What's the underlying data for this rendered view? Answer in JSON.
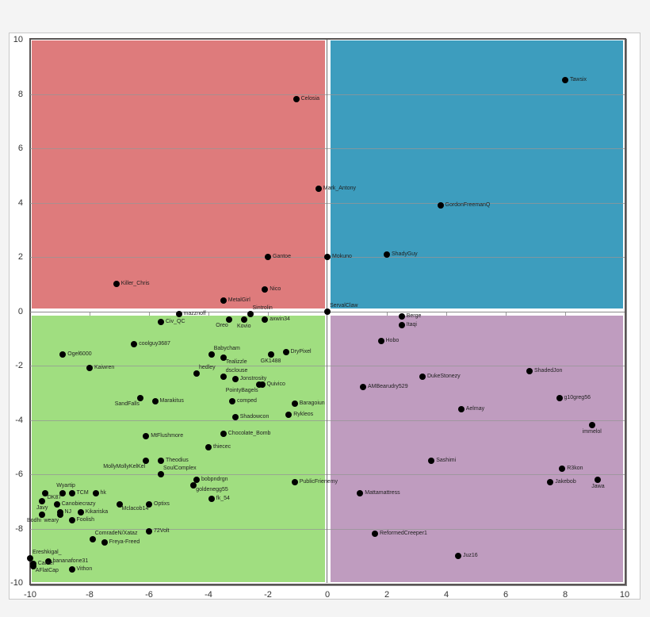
{
  "chart_data": {
    "type": "scatter",
    "title": "",
    "xlabel": "",
    "ylabel": "",
    "xlim": [
      -10,
      10
    ],
    "ylim": [
      -10,
      10
    ],
    "xticks": [
      -10,
      -8,
      -6,
      -4,
      -2,
      0,
      2,
      4,
      6,
      8,
      10
    ],
    "yticks": [
      10,
      8,
      6,
      4,
      2,
      0,
      -2,
      -4,
      -6,
      -8,
      -10
    ],
    "grid": "horizontal",
    "legend": "none",
    "quadrant_colors": {
      "top_left": "#de7b7c",
      "top_right": "#3d9dbe",
      "bottom_left": "#a0de80",
      "bottom_right": "#bf9cbf"
    },
    "points": [
      {
        "label": "Celosia",
        "x": -1.05,
        "y": 7.8,
        "pos": "r"
      },
      {
        "label": "Tawsix",
        "x": 8.0,
        "y": 8.5,
        "pos": "r"
      },
      {
        "label": "Mark_Antony",
        "x": -0.3,
        "y": 4.5,
        "pos": "r"
      },
      {
        "label": "GordonFreemanQ",
        "x": 3.8,
        "y": 3.9,
        "pos": "r"
      },
      {
        "label": "Gantoe",
        "x": -2.0,
        "y": 2.0,
        "pos": "r"
      },
      {
        "label": "Mokuno",
        "x": 0.0,
        "y": 2.0,
        "pos": "r"
      },
      {
        "label": "ShadyGuy",
        "x": 2.0,
        "y": 2.1,
        "pos": "r"
      },
      {
        "label": "Killer_Chris",
        "x": -7.1,
        "y": 1.0,
        "pos": "r"
      },
      {
        "label": "Nico",
        "x": -2.1,
        "y": 0.8,
        "pos": "r"
      },
      {
        "label": "MetalGirl",
        "x": -3.5,
        "y": 0.4,
        "pos": "r"
      },
      {
        "label": "ServalClaw",
        "x": 0.0,
        "y": 0.0,
        "pos": "tr"
      },
      {
        "label": "Sintrolin",
        "x": -2.6,
        "y": -0.1,
        "pos": "tr"
      },
      {
        "label": "mazznoff",
        "x": -5.0,
        "y": -0.1,
        "pos": "r"
      },
      {
        "label": "Civ_QC",
        "x": -5.6,
        "y": -0.4,
        "pos": "r"
      },
      {
        "label": "Oreo",
        "x": -3.3,
        "y": -0.3,
        "pos": "bl"
      },
      {
        "label": "Kovio",
        "x": -2.8,
        "y": -0.3,
        "pos": "b"
      },
      {
        "label": "axwin34",
        "x": -2.1,
        "y": -0.3,
        "pos": "r"
      },
      {
        "label": "Berge",
        "x": 2.5,
        "y": -0.2,
        "pos": "r"
      },
      {
        "label": "Itaqi",
        "x": 2.5,
        "y": -0.5,
        "pos": "r"
      },
      {
        "label": "Hobo",
        "x": 1.8,
        "y": -1.1,
        "pos": "r"
      },
      {
        "label": "coolguy3687",
        "x": -6.5,
        "y": -1.2,
        "pos": "r"
      },
      {
        "label": "Ogel6000",
        "x": -8.9,
        "y": -1.6,
        "pos": "r"
      },
      {
        "label": "Babycham",
        "x": -3.9,
        "y": -1.6,
        "pos": "tr"
      },
      {
        "label": "Tealizzle",
        "x": -3.5,
        "y": -1.7,
        "pos": "br"
      },
      {
        "label": "GK1488",
        "x": -1.9,
        "y": -1.6,
        "pos": "b"
      },
      {
        "label": "DryPixel",
        "x": -1.4,
        "y": -1.5,
        "pos": "r"
      },
      {
        "label": "Kaiwren",
        "x": -8.0,
        "y": -2.1,
        "pos": "r"
      },
      {
        "label": "hedley",
        "x": -4.4,
        "y": -2.3,
        "pos": "tr"
      },
      {
        "label": "dsclouse",
        "x": -3.5,
        "y": -2.4,
        "pos": "tr"
      },
      {
        "label": "Jonstrosity",
        "x": -3.1,
        "y": -2.5,
        "pos": "r"
      },
      {
        "label": "PointyBagels",
        "x": -2.3,
        "y": -2.7,
        "pos": "bl"
      },
      {
        "label": "Quivico",
        "x": -2.2,
        "y": -2.7,
        "pos": "r"
      },
      {
        "label": "ShadedJon",
        "x": 6.8,
        "y": -2.2,
        "pos": "r"
      },
      {
        "label": "DukeStonezy",
        "x": 3.2,
        "y": -2.4,
        "pos": "r"
      },
      {
        "label": "AMBearudry529",
        "x": 1.2,
        "y": -2.8,
        "pos": "r"
      },
      {
        "label": "g10greg56",
        "x": 7.8,
        "y": -3.2,
        "pos": "r"
      },
      {
        "label": "Aelmay",
        "x": 4.5,
        "y": -3.6,
        "pos": "r"
      },
      {
        "label": "SandFalls",
        "x": -6.3,
        "y": -3.2,
        "pos": "bl"
      },
      {
        "label": "Marakitus",
        "x": -5.8,
        "y": -3.3,
        "pos": "r"
      },
      {
        "label": "comped",
        "x": -3.2,
        "y": -3.3,
        "pos": "r"
      },
      {
        "label": "Baragoiun",
        "x": -1.1,
        "y": -3.4,
        "pos": "r"
      },
      {
        "label": "Rykleos",
        "x": -1.3,
        "y": -3.8,
        "pos": "r"
      },
      {
        "label": "Shadowcon",
        "x": -3.1,
        "y": -3.9,
        "pos": "r"
      },
      {
        "label": "immelol",
        "x": 8.9,
        "y": -4.2,
        "pos": "b"
      },
      {
        "label": "Chocolate_Bomb",
        "x": -3.5,
        "y": -4.5,
        "pos": "r"
      },
      {
        "label": "MtFlushmore",
        "x": -6.1,
        "y": -4.6,
        "pos": "r"
      },
      {
        "label": "thiecec",
        "x": -4.0,
        "y": -5.0,
        "pos": "r"
      },
      {
        "label": "Sashimi",
        "x": 3.5,
        "y": -5.5,
        "pos": "r"
      },
      {
        "label": "MollyMollyKelKel",
        "x": -6.1,
        "y": -5.5,
        "pos": "bl"
      },
      {
        "label": "Theodius",
        "x": -5.6,
        "y": -5.5,
        "pos": "r"
      },
      {
        "label": "R3kon",
        "x": 7.9,
        "y": -5.8,
        "pos": "r"
      },
      {
        "label": "SoulComplex",
        "x": -5.6,
        "y": -6.0,
        "pos": "tr"
      },
      {
        "label": "bobpndrgn",
        "x": -4.4,
        "y": -6.2,
        "pos": "r"
      },
      {
        "label": "goldenegg55",
        "x": -4.5,
        "y": -6.4,
        "pos": "br"
      },
      {
        "label": "PublicFrienemy",
        "x": -1.1,
        "y": -6.3,
        "pos": "r"
      },
      {
        "label": "Jakebob",
        "x": 7.5,
        "y": -6.3,
        "pos": "r"
      },
      {
        "label": "Jawa",
        "x": 9.1,
        "y": -6.2,
        "pos": "b"
      },
      {
        "label": "Mattamattress",
        "x": 1.1,
        "y": -6.7,
        "pos": "r"
      },
      {
        "label": "fk_54",
        "x": -3.9,
        "y": -6.9,
        "pos": "r"
      },
      {
        "label": "DK87",
        "x": -9.5,
        "y": -6.7,
        "pos": "br"
      },
      {
        "label": "Wyartip",
        "x": -8.9,
        "y": -6.7,
        "pos": "t"
      },
      {
        "label": "TCM",
        "x": -8.6,
        "y": -6.7,
        "pos": "r"
      },
      {
        "label": "hk",
        "x": -7.8,
        "y": -6.7,
        "pos": "r"
      },
      {
        "label": "Javy",
        "x": -9.6,
        "y": -7.0,
        "pos": "b"
      },
      {
        "label": "Canobiecrazy",
        "x": -9.1,
        "y": -7.1,
        "pos": "r"
      },
      {
        "label": "Mclacob14",
        "x": -7.0,
        "y": -7.1,
        "pos": "br"
      },
      {
        "label": "Optixs",
        "x": -6.0,
        "y": -7.1,
        "pos": "r"
      },
      {
        "label": "NJ",
        "x": -9.0,
        "y": -7.4,
        "pos": "r"
      },
      {
        "label": "weary",
        "x": -9.0,
        "y": -7.5,
        "pos": "bl"
      },
      {
        "label": "Kikariska",
        "x": -8.3,
        "y": -7.4,
        "pos": "r"
      },
      {
        "label": "Bodhi",
        "x": -9.6,
        "y": -7.5,
        "pos": "bl"
      },
      {
        "label": "Foolish",
        "x": -8.6,
        "y": -7.7,
        "pos": "r"
      },
      {
        "label": "72Volt",
        "x": -6.0,
        "y": -8.1,
        "pos": "r"
      },
      {
        "label": "ComradeN/Xataz",
        "x": -7.9,
        "y": -8.4,
        "pos": "tr"
      },
      {
        "label": "Freya-Freed",
        "x": -7.5,
        "y": -8.5,
        "pos": "r"
      },
      {
        "label": "ReformedCreeper1",
        "x": 1.6,
        "y": -8.2,
        "pos": "r"
      },
      {
        "label": "Juz16",
        "x": 4.4,
        "y": -9.0,
        "pos": "r"
      },
      {
        "label": "Ereshkigal_",
        "x": -10.0,
        "y": -9.1,
        "pos": "tr"
      },
      {
        "label": "bananafone31",
        "x": -9.4,
        "y": -9.2,
        "pos": "r"
      },
      {
        "label": "Camel",
        "x": -9.9,
        "y": -9.3,
        "pos": "r"
      },
      {
        "label": "AFlatCap",
        "x": -9.9,
        "y": -9.4,
        "pos": "br"
      },
      {
        "label": "Vithon",
        "x": -8.6,
        "y": -9.5,
        "pos": "r"
      }
    ]
  }
}
